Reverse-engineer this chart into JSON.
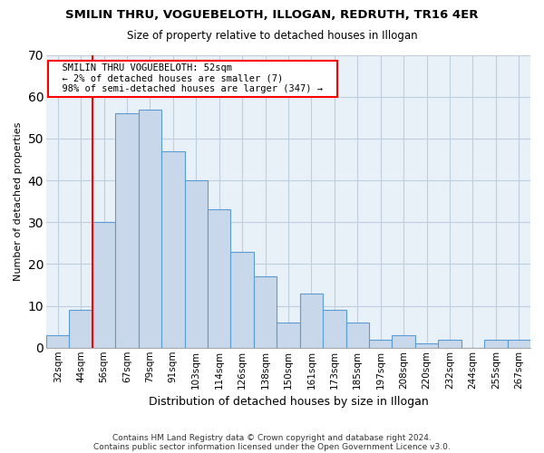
{
  "title": "SMILIN THRU, VOGUEBELOTH, ILLOGAN, REDRUTH, TR16 4ER",
  "subtitle": "Size of property relative to detached houses in Illogan",
  "xlabel": "Distribution of detached houses by size in Illogan",
  "ylabel": "Number of detached properties",
  "footnote1": "Contains HM Land Registry data © Crown copyright and database right 2024.",
  "footnote2": "Contains public sector information licensed under the Open Government Licence v3.0.",
  "bar_labels": [
    "32sqm",
    "44sqm",
    "56sqm",
    "67sqm",
    "79sqm",
    "91sqm",
    "103sqm",
    "114sqm",
    "126sqm",
    "138sqm",
    "150sqm",
    "161sqm",
    "173sqm",
    "185sqm",
    "197sqm",
    "208sqm",
    "220sqm",
    "232sqm",
    "244sqm",
    "255sqm",
    "267sqm"
  ],
  "bar_values": [
    3,
    9,
    30,
    56,
    57,
    47,
    40,
    33,
    23,
    17,
    6,
    13,
    9,
    6,
    2,
    3,
    1,
    2,
    0,
    2,
    2
  ],
  "bar_color": "#c8d8ea",
  "bar_edgecolor": "#5b9bd5",
  "plot_bg_color": "#e8f0f8",
  "ylim": [
    0,
    70
  ],
  "yticks": [
    0,
    10,
    20,
    30,
    40,
    50,
    60,
    70
  ],
  "vline_x_index": 2,
  "marker_label": "SMILIN THRU VOGUEBELOTH: 52sqm",
  "marker_line": "← 2% of detached houses are smaller (7)",
  "marker_line2": "98% of semi-detached houses are larger (347) →",
  "background_color": "#ffffff",
  "grid_color": "#c0cfe0"
}
